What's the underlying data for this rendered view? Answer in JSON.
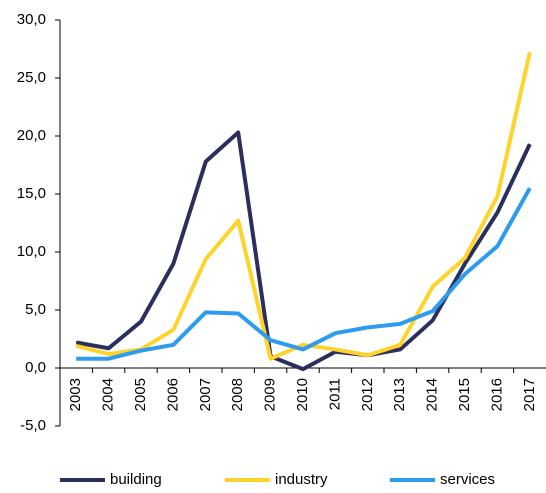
{
  "chart_data": {
    "type": "line",
    "categories": [
      "2003",
      "2004",
      "2005",
      "2006",
      "2007",
      "2008",
      "2009",
      "2010",
      "2011",
      "2012",
      "2013",
      "2014",
      "2015",
      "2016",
      "2017"
    ],
    "series": [
      {
        "name": "building",
        "color": "#2b2f5e",
        "values": [
          2.2,
          1.7,
          4.0,
          9.0,
          17.8,
          20.3,
          1.0,
          -0.1,
          1.4,
          1.1,
          1.6,
          4.1,
          9.0,
          13.4,
          19.3
        ]
      },
      {
        "name": "industry",
        "color": "#ffd42a",
        "values": [
          1.9,
          1.2,
          1.6,
          3.3,
          9.4,
          12.7,
          0.8,
          2.0,
          1.6,
          1.1,
          2.0,
          7.0,
          9.5,
          14.8,
          27.2
        ]
      },
      {
        "name": "services",
        "color": "#2e9bef",
        "values": [
          0.8,
          0.8,
          1.5,
          2.0,
          4.8,
          4.7,
          2.4,
          1.6,
          3.0,
          3.5,
          3.8,
          4.9,
          8.1,
          10.5,
          15.5
        ]
      }
    ],
    "ylim": [
      -5,
      30
    ],
    "yticks": [
      {
        "value": -5,
        "label": "-5,0"
      },
      {
        "value": 0,
        "label": "0,0"
      },
      {
        "value": 5,
        "label": "5,0"
      },
      {
        "value": 10,
        "label": "10,0"
      },
      {
        "value": 15,
        "label": "15,0"
      },
      {
        "value": 20,
        "label": "20,0"
      },
      {
        "value": 25,
        "label": "25,0"
      },
      {
        "value": 30,
        "label": "30,0"
      }
    ],
    "grid": false,
    "legend": "bottom"
  }
}
